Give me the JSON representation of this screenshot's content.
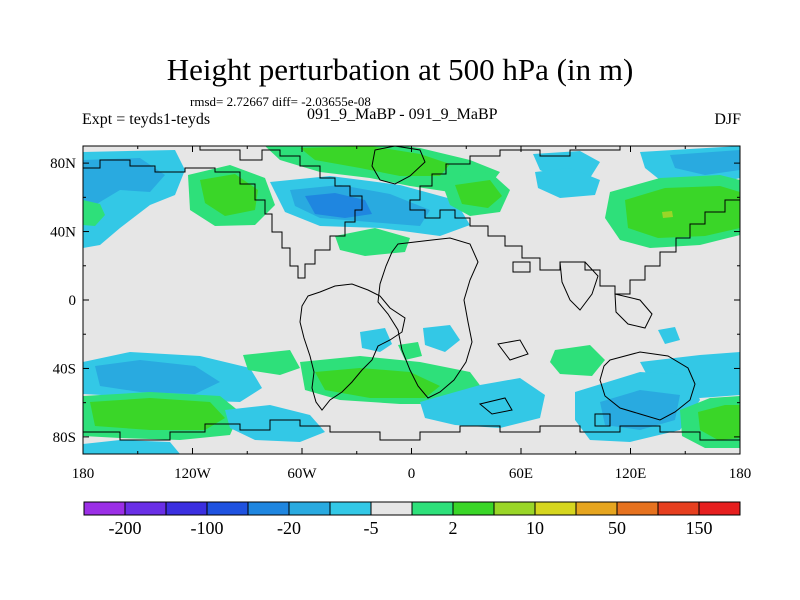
{
  "title": "Height perturbation at 500 hPa (in m)",
  "stats_text": "rmsd= 2.72667 diff= -2.03655e-08",
  "left_label": "Expt = teyds1-teyds",
  "center_label": "091_9_MaBP - 091_9_MaBP",
  "right_label": "DJF",
  "colors": {
    "background": "#e6e6e6",
    "coast": "#000000"
  },
  "map": {
    "lon_range": [
      -180,
      180
    ],
    "lat_range": [
      -90,
      90
    ],
    "lon_ticks": [
      {
        "value": -180,
        "label": "180"
      },
      {
        "value": -120,
        "label": "120W"
      },
      {
        "value": -60,
        "label": "60W"
      },
      {
        "value": 0,
        "label": "0"
      },
      {
        "value": 60,
        "label": "60E"
      },
      {
        "value": 120,
        "label": "120E"
      },
      {
        "value": 180,
        "label": "180"
      }
    ],
    "lat_ticks": [
      {
        "value": 80,
        "label": "80N"
      },
      {
        "value": 40,
        "label": "40N"
      },
      {
        "value": 0,
        "label": "0"
      },
      {
        "value": -40,
        "label": "40S"
      },
      {
        "value": -80,
        "label": "80S"
      }
    ]
  },
  "colorbar": {
    "colors": [
      "#9b2fe6",
      "#6a2fe6",
      "#3b2fe0",
      "#1f52e0",
      "#1f86e0",
      "#29aae0",
      "#33c8e6",
      "#e6e6e6",
      "#2ee07a",
      "#3ad628",
      "#9ad628",
      "#d6d61f",
      "#e6a51f",
      "#e6721f",
      "#e63f1f",
      "#e61f1f"
    ],
    "labels": [
      {
        "text": "-200",
        "index": 1
      },
      {
        "text": "-100",
        "index": 3
      },
      {
        "text": "-20",
        "index": 5
      },
      {
        "text": "-5",
        "index": 7
      },
      {
        "text": "2",
        "index": 9
      },
      {
        "text": "10",
        "index": 11
      },
      {
        "text": "50",
        "index": 13
      },
      {
        "text": "150",
        "index": 15
      }
    ]
  }
}
